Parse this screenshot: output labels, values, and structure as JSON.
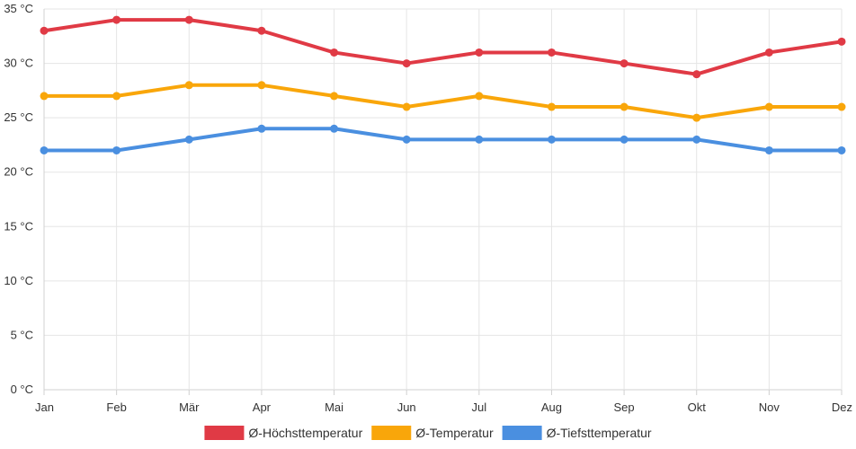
{
  "chart_data": {
    "type": "line",
    "title": "",
    "xlabel": "",
    "ylabel": "",
    "categories": [
      "Jan",
      "Feb",
      "Mär",
      "Apr",
      "Mai",
      "Jun",
      "Jul",
      "Aug",
      "Sep",
      "Okt",
      "Nov",
      "Dez"
    ],
    "ylim": [
      0,
      35
    ],
    "yticks": [
      0,
      5,
      10,
      15,
      20,
      25,
      30,
      35
    ],
    "ytick_labels": [
      "0 °C",
      "5 °C",
      "10 °C",
      "15 °C",
      "20 °C",
      "25 °C",
      "30 °C",
      "35 °C"
    ],
    "grid": true,
    "legend_position": "bottom",
    "series": [
      {
        "name": "Ø-Höchsttemperatur",
        "color": "#e03a45",
        "values": [
          33,
          34,
          34,
          33,
          31,
          30,
          31,
          31,
          30,
          29,
          31,
          32
        ]
      },
      {
        "name": "Ø-Temperatur",
        "color": "#f9a60a",
        "values": [
          27,
          27,
          28,
          28,
          27,
          26,
          27,
          26,
          26,
          25,
          26,
          26
        ]
      },
      {
        "name": "Ø-Tiefsttemperatur",
        "color": "#4a8fe0",
        "values": [
          22,
          22,
          23,
          24,
          24,
          23,
          23,
          23,
          23,
          23,
          22,
          22
        ]
      }
    ]
  }
}
